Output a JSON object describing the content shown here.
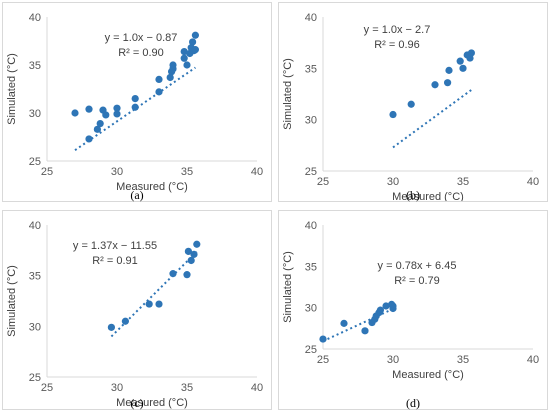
{
  "chart_data": [
    {
      "type": "scatter",
      "caption": "(a)",
      "equation": "y = 1.0x − 0.87",
      "r2": "R² = 0.90",
      "xlabel": "Measured (°C)",
      "ylabel": "Simulated (°C)",
      "xlim": [
        25,
        40
      ],
      "ylim": [
        25,
        40
      ],
      "xticks": [
        "25",
        "30",
        "35",
        "40"
      ],
      "yticks": [
        "25",
        "30",
        "35",
        "40"
      ],
      "trendline": {
        "slope": 1.0,
        "intercept": -0.87,
        "x_range": [
          27.0,
          35.6
        ]
      },
      "points": [
        {
          "x": 27.0,
          "y": 30.0
        },
        {
          "x": 28.0,
          "y": 30.4
        },
        {
          "x": 28.0,
          "y": 27.3
        },
        {
          "x": 28.6,
          "y": 28.3
        },
        {
          "x": 28.8,
          "y": 28.9
        },
        {
          "x": 29.0,
          "y": 30.3
        },
        {
          "x": 29.2,
          "y": 29.8
        },
        {
          "x": 30.0,
          "y": 30.5
        },
        {
          "x": 30.0,
          "y": 29.9
        },
        {
          "x": 31.3,
          "y": 31.5
        },
        {
          "x": 31.3,
          "y": 30.6
        },
        {
          "x": 33.0,
          "y": 32.2
        },
        {
          "x": 33.0,
          "y": 33.5
        },
        {
          "x": 33.8,
          "y": 33.7
        },
        {
          "x": 33.9,
          "y": 34.3
        },
        {
          "x": 34.0,
          "y": 35.0
        },
        {
          "x": 34.0,
          "y": 34.6
        },
        {
          "x": 34.8,
          "y": 35.7
        },
        {
          "x": 34.8,
          "y": 36.4
        },
        {
          "x": 35.0,
          "y": 35.0
        },
        {
          "x": 35.2,
          "y": 36.2
        },
        {
          "x": 35.3,
          "y": 36.8
        },
        {
          "x": 35.4,
          "y": 37.4
        },
        {
          "x": 35.5,
          "y": 36.5
        },
        {
          "x": 35.6,
          "y": 38.1
        },
        {
          "x": 35.6,
          "y": 36.6
        }
      ]
    },
    {
      "type": "scatter",
      "caption": "(b)",
      "equation": "y = 1.0x − 2.7",
      "r2": "R² = 0.96",
      "xlabel": "Measured (°C)",
      "ylabel": "Simulated (°C)",
      "xlim": [
        25,
        40
      ],
      "ylim": [
        25,
        40
      ],
      "xticks": [
        "25",
        "30",
        "35",
        "40"
      ],
      "yticks": [
        "25",
        "30",
        "35",
        "40"
      ],
      "trendline": {
        "slope": 1.0,
        "intercept": -2.7,
        "x_range": [
          30.0,
          35.6
        ]
      },
      "points": [
        {
          "x": 30.0,
          "y": 30.5
        },
        {
          "x": 31.3,
          "y": 31.5
        },
        {
          "x": 33.0,
          "y": 33.4
        },
        {
          "x": 33.9,
          "y": 33.6
        },
        {
          "x": 34.0,
          "y": 34.8
        },
        {
          "x": 34.8,
          "y": 35.7
        },
        {
          "x": 35.0,
          "y": 35.0
        },
        {
          "x": 35.3,
          "y": 36.3
        },
        {
          "x": 35.5,
          "y": 36.0
        },
        {
          "x": 35.6,
          "y": 36.5
        }
      ]
    },
    {
      "type": "scatter",
      "caption": "(c)",
      "equation": "y = 1.37x − 11.55",
      "r2": "R² = 0.91",
      "xlabel": "Measured (°C)",
      "ylabel": "Simulated (°C)",
      "xlim": [
        25,
        40
      ],
      "ylim": [
        25,
        40
      ],
      "xticks": [
        "25",
        "30",
        "35",
        "40"
      ],
      "yticks": [
        "25",
        "30",
        "35",
        "40"
      ],
      "trendline": {
        "slope": 1.37,
        "intercept": -11.55,
        "x_range": [
          29.6,
          35.7
        ]
      },
      "points": [
        {
          "x": 29.6,
          "y": 29.9
        },
        {
          "x": 30.6,
          "y": 30.5
        },
        {
          "x": 32.3,
          "y": 32.2
        },
        {
          "x": 33.0,
          "y": 32.2
        },
        {
          "x": 34.0,
          "y": 35.2
        },
        {
          "x": 35.0,
          "y": 35.1
        },
        {
          "x": 35.1,
          "y": 37.4
        },
        {
          "x": 35.3,
          "y": 36.5
        },
        {
          "x": 35.5,
          "y": 37.1
        },
        {
          "x": 35.7,
          "y": 38.1
        }
      ]
    },
    {
      "type": "scatter",
      "caption": "(d)",
      "equation": "y = 0.78x + 6.45",
      "r2": "R² = 0.79",
      "xlabel": "Measured (°C)",
      "ylabel": "Simulated (°C)",
      "xlim": [
        25,
        40
      ],
      "ylim": [
        25,
        40
      ],
      "xticks": [
        "25",
        "30",
        "35",
        "40"
      ],
      "yticks": [
        "25",
        "30",
        "35",
        "40"
      ],
      "trendline": {
        "slope": 0.78,
        "intercept": 6.45,
        "x_range": [
          25.0,
          30.0
        ]
      },
      "points": [
        {
          "x": 25.0,
          "y": 26.2
        },
        {
          "x": 26.5,
          "y": 28.1
        },
        {
          "x": 28.0,
          "y": 27.2
        },
        {
          "x": 28.5,
          "y": 28.2
        },
        {
          "x": 28.7,
          "y": 28.6
        },
        {
          "x": 28.8,
          "y": 29.0
        },
        {
          "x": 29.0,
          "y": 29.4
        },
        {
          "x": 29.1,
          "y": 29.7
        },
        {
          "x": 29.5,
          "y": 30.2
        },
        {
          "x": 30.0,
          "y": 30.2
        },
        {
          "x": 30.0,
          "y": 29.9
        },
        {
          "x": 29.9,
          "y": 30.4
        }
      ]
    }
  ],
  "style": {
    "marker_color": "#2e75b6",
    "trend_color": "#2e75b6",
    "axis_color": "#d9d9d9"
  }
}
